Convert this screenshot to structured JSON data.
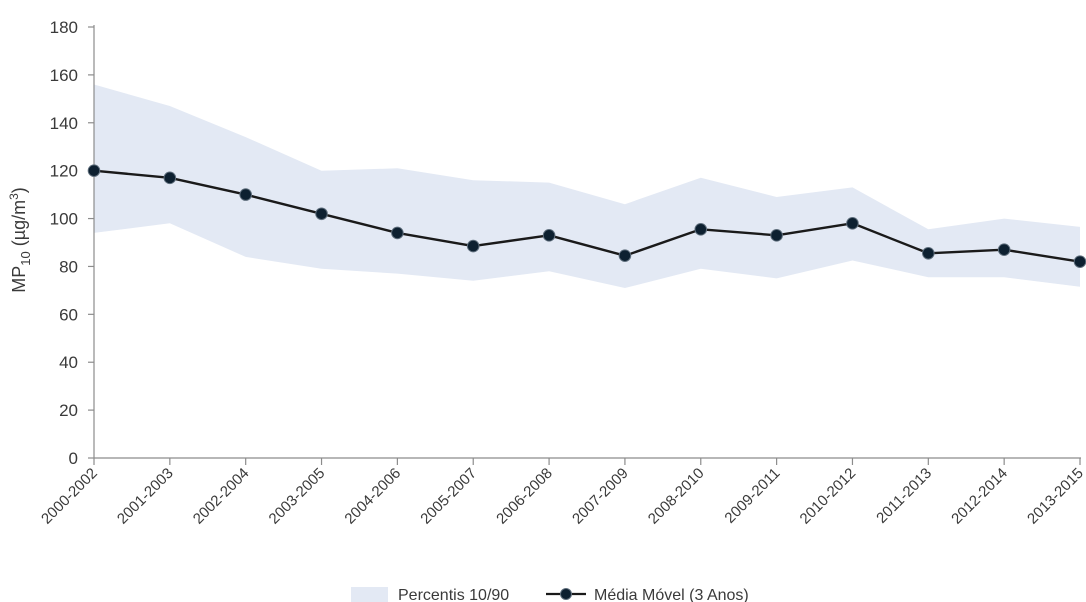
{
  "chart_data": {
    "type": "line",
    "title": "",
    "xlabel": "",
    "ylabel": {
      "main": "MP",
      "subscript": "10",
      "unit_open": " (µg/m",
      "superscript": "3",
      "unit_close": ")"
    },
    "ylim": [
      0,
      180
    ],
    "yticks": [
      "0",
      "20",
      "40",
      "60",
      "80",
      "100",
      "120",
      "140",
      "160",
      "180"
    ],
    "categories": [
      "2000-2002",
      "2001-2003",
      "2002-2004",
      "2003-2005",
      "2004-2006",
      "2005-2007",
      "2006-2008",
      "2007-2009",
      "2008-2010",
      "2009-2011",
      "2010-2012",
      "2011-2013",
      "2012-2014",
      "2013-2015"
    ],
    "series": [
      {
        "name": "Média Móvel (3 Anos)",
        "type": "line",
        "color": "#1a1a1a",
        "marker_color": "#0d2030",
        "values": [
          120,
          117,
          110,
          102,
          94,
          88.5,
          93,
          84.5,
          95.5,
          93,
          98,
          85.5,
          87,
          82
        ]
      },
      {
        "name": "Percentis 10/90",
        "type": "band",
        "color": "#e3e9f4",
        "lower": [
          94,
          98,
          84,
          79,
          77,
          74,
          78,
          71,
          79,
          75,
          82.5,
          75.5,
          75.5,
          71.5
        ],
        "upper": [
          156,
          147,
          134,
          120,
          121,
          116,
          115,
          106,
          117,
          109,
          113,
          95.5,
          100,
          96.5
        ]
      }
    ],
    "grid": false,
    "legend": {
      "position": "bottom-center",
      "band_label": "Percentis 10/90",
      "line_label": "Média Móvel (3 Anos)"
    },
    "colors": {
      "axis": "#8c8c8c",
      "band": "#e3e9f4",
      "line": "#1a1a1a",
      "marker_fill": "#0d2030"
    }
  }
}
